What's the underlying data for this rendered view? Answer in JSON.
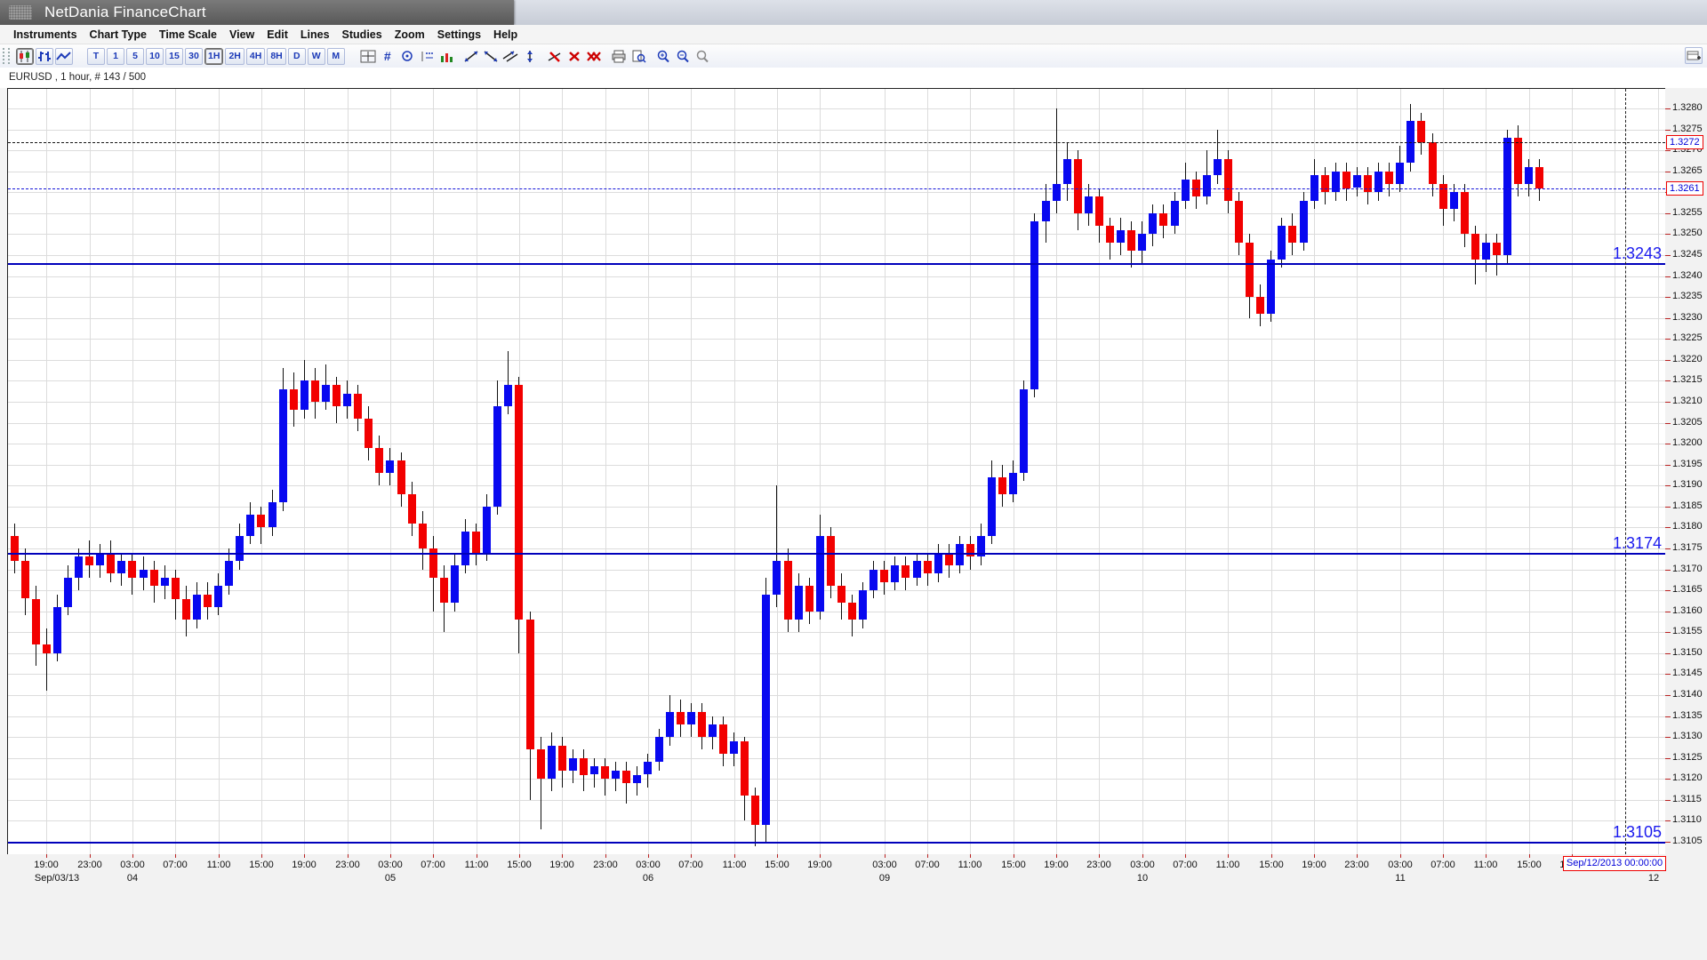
{
  "window": {
    "title": "NetDania FinanceChart"
  },
  "menu": {
    "items": [
      "Instruments",
      "Chart Type",
      "Time Scale",
      "View",
      "Edit",
      "Lines",
      "Studies",
      "Zoom",
      "Settings",
      "Help"
    ]
  },
  "toolbar": {
    "chart_type_buttons": [
      {
        "name": "candlestick-chart-button",
        "icon": "candlestick-icon",
        "selected": true
      },
      {
        "name": "ohlc-bars-button",
        "icon": "ohlc-bars-icon",
        "selected": false
      },
      {
        "name": "line-chart-button",
        "icon": "line-chart-icon",
        "selected": false
      }
    ],
    "timeframes": {
      "labels": [
        "T",
        "1",
        "5",
        "10",
        "15",
        "30",
        "1H",
        "2H",
        "4H",
        "8H",
        "D",
        "W",
        "M"
      ],
      "selected": "1H"
    },
    "tools": [
      {
        "name": "crosshair-tool-button",
        "icon": "crosshair-icon",
        "group": 1
      },
      {
        "name": "grid-hash-button",
        "icon": "hash-icon",
        "group": 1
      },
      {
        "name": "info-marker-button",
        "icon": "info-icon",
        "group": 1
      },
      {
        "name": "data-label-button",
        "icon": "data-label-icon",
        "group": 1
      },
      {
        "name": "volume-study-button",
        "icon": "volume-icon",
        "group": 1
      },
      {
        "name": "trendline-up-button",
        "icon": "trendline-up-icon",
        "group": 2
      },
      {
        "name": "trendline-down-button",
        "icon": "trendline-down-icon",
        "group": 2
      },
      {
        "name": "trendline-parallel-button",
        "icon": "trendline-parallel-icon",
        "group": 2
      },
      {
        "name": "trendline-vertical-button",
        "icon": "trendline-vertical-icon",
        "group": 2
      },
      {
        "name": "remove-line-button",
        "icon": "remove-line-icon",
        "group": 3
      },
      {
        "name": "remove-selected-button",
        "icon": "red-x-icon",
        "group": 3
      },
      {
        "name": "remove-all-button",
        "icon": "double-red-x-icon",
        "group": 3
      },
      {
        "name": "print-button",
        "icon": "printer-icon",
        "group": 4
      },
      {
        "name": "print-preview-button",
        "icon": "print-preview-icon",
        "group": 4
      },
      {
        "name": "zoom-in-button",
        "icon": "zoom-in-icon",
        "group": 5
      },
      {
        "name": "zoom-out-button",
        "icon": "zoom-out-icon",
        "group": 5
      },
      {
        "name": "zoom-reset-button",
        "icon": "zoom-reset-icon",
        "group": 5
      }
    ],
    "add_panel_button": {
      "name": "add-panel-button",
      "icon": "add-panel-icon"
    }
  },
  "chart": {
    "instrument_label": "EURUSD , 1 hour, # 143 / 500",
    "colors": {
      "up": "#0808f0",
      "down": "#f20000",
      "level_blue": "#0000bb",
      "label_blue": "#1a1aee",
      "grid": "#dcdcdc",
      "tick_red": "#bb2222",
      "box_red": "#ee0000",
      "box_text_blue": "#0000d8"
    },
    "levels": {
      "dashed_black_level": 1.3272,
      "dashed_black_label": "1.3272",
      "current_price_level": 1.3261,
      "current_price_label": "1.3261",
      "blue_lines": [
        {
          "level": 1.3243,
          "label": "1.3243"
        },
        {
          "level": 1.3174,
          "label": "1.3174"
        },
        {
          "level": 1.3105,
          "label": "1.3105"
        }
      ]
    },
    "future_marker": {
      "label": "Sep/12/2013 00:00:00",
      "slot": 150,
      "date_label": "12",
      "date_slot": 153
    }
  },
  "chart_data": {
    "type": "candlestick",
    "symbol": "EURUSD",
    "interval": "1 hour",
    "title": "EURUSD , 1 hour, # 143 / 500",
    "y_axis": {
      "min": 1.3105,
      "max": 1.328,
      "tick": 0.0005,
      "labels": [
        "1.3105",
        "1.3110",
        "1.3115",
        "1.3120",
        "1.3125",
        "1.3130",
        "1.3135",
        "1.3140",
        "1.3145",
        "1.3150",
        "1.3155",
        "1.3160",
        "1.3165",
        "1.3170",
        "1.3175",
        "1.3180",
        "1.3185",
        "1.3190",
        "1.3195",
        "1.3200",
        "1.3205",
        "1.3210",
        "1.3215",
        "1.3220",
        "1.3225",
        "1.3230",
        "1.3235",
        "1.3240",
        "1.3245",
        "1.3250",
        "1.3255",
        "1.3260",
        "1.3265",
        "1.3270",
        "1.3275",
        "1.3280"
      ]
    },
    "days": [
      {
        "date": "Sep/03/13",
        "first_hour": 16,
        "candles": 8
      },
      {
        "date": "04",
        "first_hour": 0,
        "candles": 24
      },
      {
        "date": "05",
        "first_hour": 0,
        "candles": 24
      },
      {
        "date": "06",
        "first_hour": 0,
        "candles": 22
      },
      {
        "date": "09",
        "first_hour": 0,
        "candles": 24
      },
      {
        "date": "10",
        "first_hour": 0,
        "candles": 24
      },
      {
        "date": "11",
        "first_hour": 0,
        "candles": 17
      }
    ],
    "hour_labels": [
      {
        "slot": 3,
        "text": "19:00"
      },
      {
        "slot": 7,
        "text": "23:00"
      },
      {
        "slot": 11,
        "text": "03:00"
      },
      {
        "slot": 15,
        "text": "07:00"
      },
      {
        "slot": 19,
        "text": "11:00"
      },
      {
        "slot": 23,
        "text": "15:00"
      },
      {
        "slot": 27,
        "text": "19:00"
      },
      {
        "slot": 31,
        "text": "23:00"
      },
      {
        "slot": 35,
        "text": "03:00"
      },
      {
        "slot": 39,
        "text": "07:00"
      },
      {
        "slot": 43,
        "text": "11:00"
      },
      {
        "slot": 47,
        "text": "15:00"
      },
      {
        "slot": 51,
        "text": "19:00"
      },
      {
        "slot": 55,
        "text": "23:00"
      },
      {
        "slot": 59,
        "text": "03:00"
      },
      {
        "slot": 63,
        "text": "07:00"
      },
      {
        "slot": 67,
        "text": "11:00"
      },
      {
        "slot": 71,
        "text": "15:00"
      },
      {
        "slot": 75,
        "text": "19:00"
      },
      {
        "slot": 81,
        "text": "03:00"
      },
      {
        "slot": 85,
        "text": "07:00"
      },
      {
        "slot": 89,
        "text": "11:00"
      },
      {
        "slot": 93,
        "text": "15:00"
      },
      {
        "slot": 97,
        "text": "19:00"
      },
      {
        "slot": 101,
        "text": "23:00"
      },
      {
        "slot": 105,
        "text": "03:00"
      },
      {
        "slot": 109,
        "text": "07:00"
      },
      {
        "slot": 113,
        "text": "11:00"
      },
      {
        "slot": 117,
        "text": "15:00"
      },
      {
        "slot": 121,
        "text": "19:00"
      },
      {
        "slot": 125,
        "text": "23:00"
      },
      {
        "slot": 129,
        "text": "03:00"
      },
      {
        "slot": 133,
        "text": "07:00"
      },
      {
        "slot": 137,
        "text": "11:00"
      },
      {
        "slot": 141,
        "text": "15:00"
      },
      {
        "slot": 145,
        "text": "19:00"
      }
    ],
    "date_labels": [
      {
        "slot": 4,
        "text": "Sep/03/13"
      },
      {
        "slot": 11,
        "text": "04"
      },
      {
        "slot": 35,
        "text": "05"
      },
      {
        "slot": 59,
        "text": "06"
      },
      {
        "slot": 81,
        "text": "09"
      },
      {
        "slot": 105,
        "text": "10"
      },
      {
        "slot": 129,
        "text": "11"
      },
      {
        "slot": 153,
        "text": "12"
      }
    ],
    "candles": [
      [
        1.3178,
        1.3181,
        1.3169,
        1.3172
      ],
      [
        1.3172,
        1.3175,
        1.3159,
        1.3163
      ],
      [
        1.3163,
        1.3166,
        1.3147,
        1.3152
      ],
      [
        1.3152,
        1.3156,
        1.3141,
        1.315
      ],
      [
        1.315,
        1.3164,
        1.3148,
        1.3161
      ],
      [
        1.3161,
        1.3171,
        1.3159,
        1.3168
      ],
      [
        1.3168,
        1.3175,
        1.3165,
        1.3173
      ],
      [
        1.3173,
        1.3177,
        1.3168,
        1.3171
      ],
      [
        1.3171,
        1.3176,
        1.3168,
        1.3174
      ],
      [
        1.3174,
        1.3177,
        1.3167,
        1.3169
      ],
      [
        1.3169,
        1.3174,
        1.3166,
        1.3172
      ],
      [
        1.3172,
        1.3174,
        1.3164,
        1.3168
      ],
      [
        1.3168,
        1.3173,
        1.3165,
        1.317
      ],
      [
        1.317,
        1.3172,
        1.3162,
        1.3166
      ],
      [
        1.3166,
        1.3171,
        1.3163,
        1.3168
      ],
      [
        1.3168,
        1.317,
        1.3158,
        1.3163
      ],
      [
        1.3163,
        1.3166,
        1.3154,
        1.3158
      ],
      [
        1.3158,
        1.3167,
        1.3156,
        1.3164
      ],
      [
        1.3164,
        1.3167,
        1.3158,
        1.3161
      ],
      [
        1.3161,
        1.3169,
        1.3159,
        1.3166
      ],
      [
        1.3166,
        1.3175,
        1.3164,
        1.3172
      ],
      [
        1.3172,
        1.3181,
        1.317,
        1.3178
      ],
      [
        1.3178,
        1.3186,
        1.3176,
        1.3183
      ],
      [
        1.3183,
        1.3185,
        1.3176,
        1.318
      ],
      [
        1.318,
        1.3189,
        1.3178,
        1.3186
      ],
      [
        1.3186,
        1.3218,
        1.3184,
        1.3213
      ],
      [
        1.3213,
        1.3217,
        1.3204,
        1.3208
      ],
      [
        1.3208,
        1.322,
        1.3206,
        1.3215
      ],
      [
        1.3215,
        1.3218,
        1.3206,
        1.321
      ],
      [
        1.321,
        1.3219,
        1.3208,
        1.3214
      ],
      [
        1.3214,
        1.3216,
        1.3205,
        1.3209
      ],
      [
        1.3209,
        1.3215,
        1.3206,
        1.3212
      ],
      [
        1.3212,
        1.3214,
        1.3203,
        1.3206
      ],
      [
        1.3206,
        1.3209,
        1.3196,
        1.3199
      ],
      [
        1.3199,
        1.3202,
        1.319,
        1.3193
      ],
      [
        1.3193,
        1.3199,
        1.319,
        1.3196
      ],
      [
        1.3196,
        1.3198,
        1.3185,
        1.3188
      ],
      [
        1.3188,
        1.3191,
        1.3178,
        1.3181
      ],
      [
        1.3181,
        1.3184,
        1.317,
        1.3175
      ],
      [
        1.3175,
        1.3178,
        1.316,
        1.3168
      ],
      [
        1.3168,
        1.3171,
        1.3155,
        1.3162
      ],
      [
        1.3162,
        1.3174,
        1.316,
        1.3171
      ],
      [
        1.3171,
        1.3182,
        1.3169,
        1.3179
      ],
      [
        1.3179,
        1.3181,
        1.3171,
        1.3174
      ],
      [
        1.3174,
        1.3188,
        1.3172,
        1.3185
      ],
      [
        1.3185,
        1.3215,
        1.3183,
        1.3209
      ],
      [
        1.3209,
        1.3222,
        1.3207,
        1.3214
      ],
      [
        1.3214,
        1.3216,
        1.315,
        1.3158
      ],
      [
        1.3158,
        1.316,
        1.3115,
        1.3127
      ],
      [
        1.3127,
        1.313,
        1.3108,
        1.312
      ],
      [
        1.312,
        1.3131,
        1.3117,
        1.3128
      ],
      [
        1.3128,
        1.313,
        1.3118,
        1.3122
      ],
      [
        1.3122,
        1.3127,
        1.3119,
        1.3125
      ],
      [
        1.3125,
        1.3127,
        1.3117,
        1.3121
      ],
      [
        1.3121,
        1.3125,
        1.3118,
        1.3123
      ],
      [
        1.3123,
        1.3125,
        1.3116,
        1.312
      ],
      [
        1.312,
        1.3124,
        1.3117,
        1.3122
      ],
      [
        1.3122,
        1.3124,
        1.3114,
        1.3119
      ],
      [
        1.3119,
        1.3123,
        1.3116,
        1.3121
      ],
      [
        1.3121,
        1.3126,
        1.3118,
        1.3124
      ],
      [
        1.3124,
        1.3132,
        1.3122,
        1.313
      ],
      [
        1.313,
        1.314,
        1.3128,
        1.3136
      ],
      [
        1.3136,
        1.3139,
        1.313,
        1.3133
      ],
      [
        1.3133,
        1.3138,
        1.313,
        1.3136
      ],
      [
        1.3136,
        1.3138,
        1.3127,
        1.313
      ],
      [
        1.313,
        1.3135,
        1.3127,
        1.3133
      ],
      [
        1.3133,
        1.3135,
        1.3123,
        1.3126
      ],
      [
        1.3126,
        1.3131,
        1.3123,
        1.3129
      ],
      [
        1.3129,
        1.313,
        1.311,
        1.3116
      ],
      [
        1.3116,
        1.3118,
        1.3104,
        1.3109
      ],
      [
        1.3109,
        1.3168,
        1.3105,
        1.3164
      ],
      [
        1.3164,
        1.319,
        1.3161,
        1.3172
      ],
      [
        1.3172,
        1.3175,
        1.3155,
        1.3158
      ],
      [
        1.3158,
        1.3169,
        1.3155,
        1.3166
      ],
      [
        1.3166,
        1.3168,
        1.3157,
        1.316
      ],
      [
        1.316,
        1.3183,
        1.3158,
        1.3178
      ],
      [
        1.3178,
        1.318,
        1.3163,
        1.3166
      ],
      [
        1.3166,
        1.3169,
        1.3158,
        1.3162
      ],
      [
        1.3162,
        1.3164,
        1.3154,
        1.3158
      ],
      [
        1.3158,
        1.3167,
        1.3156,
        1.3165
      ],
      [
        1.3165,
        1.3172,
        1.3163,
        1.317
      ],
      [
        1.317,
        1.3172,
        1.3164,
        1.3167
      ],
      [
        1.3167,
        1.3173,
        1.3165,
        1.3171
      ],
      [
        1.3171,
        1.3173,
        1.3165,
        1.3168
      ],
      [
        1.3168,
        1.3174,
        1.3166,
        1.3172
      ],
      [
        1.3172,
        1.3174,
        1.3166,
        1.3169
      ],
      [
        1.3169,
        1.3176,
        1.3167,
        1.3174
      ],
      [
        1.3174,
        1.3176,
        1.3168,
        1.3171
      ],
      [
        1.3171,
        1.3178,
        1.3169,
        1.3176
      ],
      [
        1.3176,
        1.3178,
        1.317,
        1.3173
      ],
      [
        1.3173,
        1.3181,
        1.3171,
        1.3178
      ],
      [
        1.3178,
        1.3196,
        1.3176,
        1.3192
      ],
      [
        1.3192,
        1.3195,
        1.3185,
        1.3188
      ],
      [
        1.3188,
        1.3196,
        1.3186,
        1.3193
      ],
      [
        1.3193,
        1.3215,
        1.3191,
        1.3213
      ],
      [
        1.3213,
        1.3255,
        1.3211,
        1.3253
      ],
      [
        1.3253,
        1.3262,
        1.3248,
        1.3258
      ],
      [
        1.3258,
        1.328,
        1.3255,
        1.3262
      ],
      [
        1.3262,
        1.3272,
        1.3258,
        1.3268
      ],
      [
        1.3268,
        1.327,
        1.3251,
        1.3255
      ],
      [
        1.3255,
        1.3262,
        1.3252,
        1.3259
      ],
      [
        1.3259,
        1.3261,
        1.3248,
        1.3252
      ],
      [
        1.3252,
        1.3254,
        1.3244,
        1.3248
      ],
      [
        1.3248,
        1.3254,
        1.3245,
        1.3251
      ],
      [
        1.3251,
        1.3253,
        1.3242,
        1.3246
      ],
      [
        1.3246,
        1.3253,
        1.3243,
        1.325
      ],
      [
        1.325,
        1.3257,
        1.3247,
        1.3255
      ],
      [
        1.3255,
        1.3257,
        1.3249,
        1.3252
      ],
      [
        1.3252,
        1.326,
        1.325,
        1.3258
      ],
      [
        1.3258,
        1.3267,
        1.3256,
        1.3263
      ],
      [
        1.3263,
        1.3265,
        1.3256,
        1.3259
      ],
      [
        1.3259,
        1.327,
        1.3257,
        1.3264
      ],
      [
        1.3264,
        1.3275,
        1.3262,
        1.3268
      ],
      [
        1.3268,
        1.327,
        1.3255,
        1.3258
      ],
      [
        1.3258,
        1.326,
        1.3245,
        1.3248
      ],
      [
        1.3248,
        1.325,
        1.323,
        1.3235
      ],
      [
        1.3235,
        1.3238,
        1.3228,
        1.3231
      ],
      [
        1.3231,
        1.3246,
        1.3229,
        1.3244
      ],
      [
        1.3244,
        1.3254,
        1.3242,
        1.3252
      ],
      [
        1.3252,
        1.3255,
        1.3245,
        1.3248
      ],
      [
        1.3248,
        1.326,
        1.3246,
        1.3258
      ],
      [
        1.3258,
        1.3268,
        1.3256,
        1.3264
      ],
      [
        1.3264,
        1.3266,
        1.3257,
        1.326
      ],
      [
        1.326,
        1.3267,
        1.3258,
        1.3265
      ],
      [
        1.3265,
        1.3267,
        1.3258,
        1.3261
      ],
      [
        1.3261,
        1.3266,
        1.3259,
        1.3264
      ],
      [
        1.3264,
        1.3266,
        1.3257,
        1.326
      ],
      [
        1.326,
        1.3267,
        1.3258,
        1.3265
      ],
      [
        1.3265,
        1.3267,
        1.3259,
        1.3262
      ],
      [
        1.3262,
        1.3271,
        1.326,
        1.3267
      ],
      [
        1.3267,
        1.3281,
        1.3265,
        1.3277
      ],
      [
        1.3277,
        1.3279,
        1.3269,
        1.3272
      ],
      [
        1.3272,
        1.3274,
        1.3259,
        1.3262
      ],
      [
        1.3262,
        1.3264,
        1.3252,
        1.3256
      ],
      [
        1.3256,
        1.3262,
        1.3253,
        1.326
      ],
      [
        1.326,
        1.3262,
        1.3247,
        1.325
      ],
      [
        1.325,
        1.3252,
        1.3238,
        1.3244
      ],
      [
        1.3244,
        1.325,
        1.3241,
        1.3248
      ],
      [
        1.3248,
        1.325,
        1.324,
        1.3245
      ],
      [
        1.3245,
        1.3275,
        1.3243,
        1.3273
      ],
      [
        1.3273,
        1.3276,
        1.3259,
        1.3262
      ],
      [
        1.3262,
        1.3268,
        1.3259,
        1.3266
      ],
      [
        1.3266,
        1.3268,
        1.3258,
        1.3261
      ]
    ]
  }
}
